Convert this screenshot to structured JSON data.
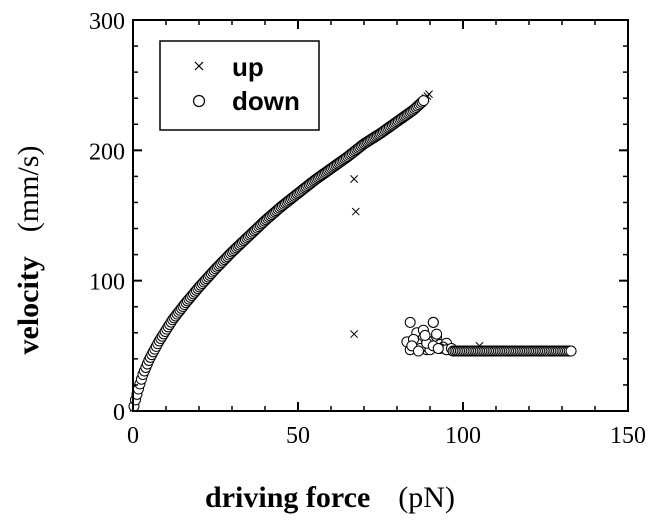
{
  "chart_data": {
    "type": "scatter",
    "xlabel": "driving force",
    "xunit": "(pN)",
    "ylabel": "velocity",
    "yunit": "(mm/s)",
    "xlim": [
      0,
      150
    ],
    "ylim": [
      0,
      300
    ],
    "xticks": [
      0,
      50,
      100,
      150
    ],
    "yticks": [
      0,
      100,
      200,
      300
    ],
    "grid": false,
    "legend_position": "top-left",
    "series": [
      {
        "name": "up",
        "marker": "cross",
        "color": "#000000",
        "curve": {
          "x": [
            0,
            0.5,
            1,
            2,
            3,
            5,
            8,
            12,
            16,
            20,
            25,
            30,
            35,
            40,
            45,
            50,
            55,
            60,
            65,
            70,
            75,
            80,
            85,
            88,
            90
          ],
          "y": [
            0,
            6,
            11,
            20,
            28,
            40,
            54,
            70,
            83,
            95,
            109,
            122,
            134,
            146,
            157,
            167,
            177,
            186,
            195,
            205,
            213,
            222,
            231,
            238,
            244
          ]
        },
        "extra": {
          "x": [
            67,
            67.5,
            67,
            105
          ],
          "y": [
            178,
            153,
            59,
            50
          ]
        }
      },
      {
        "name": "down",
        "marker": "circle",
        "color": "#000000",
        "plateau": {
          "x_start": 97,
          "x_end": 133,
          "y": 46
        },
        "scatter": {
          "x": [
            83,
            84,
            85,
            86,
            87,
            88,
            89,
            90,
            91,
            92,
            93,
            94,
            95,
            96,
            84,
            86,
            88,
            90,
            92,
            94,
            85,
            87,
            89,
            91,
            93,
            95,
            84.5,
            91,
            92.5,
            88.5,
            86.5,
            96.5
          ],
          "y": [
            53,
            68,
            49,
            60,
            51,
            56,
            47,
            53,
            68,
            57,
            51,
            49,
            52,
            47,
            47,
            52,
            62,
            47,
            59,
            49,
            55,
            48,
            52,
            50,
            48,
            47,
            50,
            68,
            48,
            58,
            46,
            48
          ]
        }
      }
    ]
  }
}
